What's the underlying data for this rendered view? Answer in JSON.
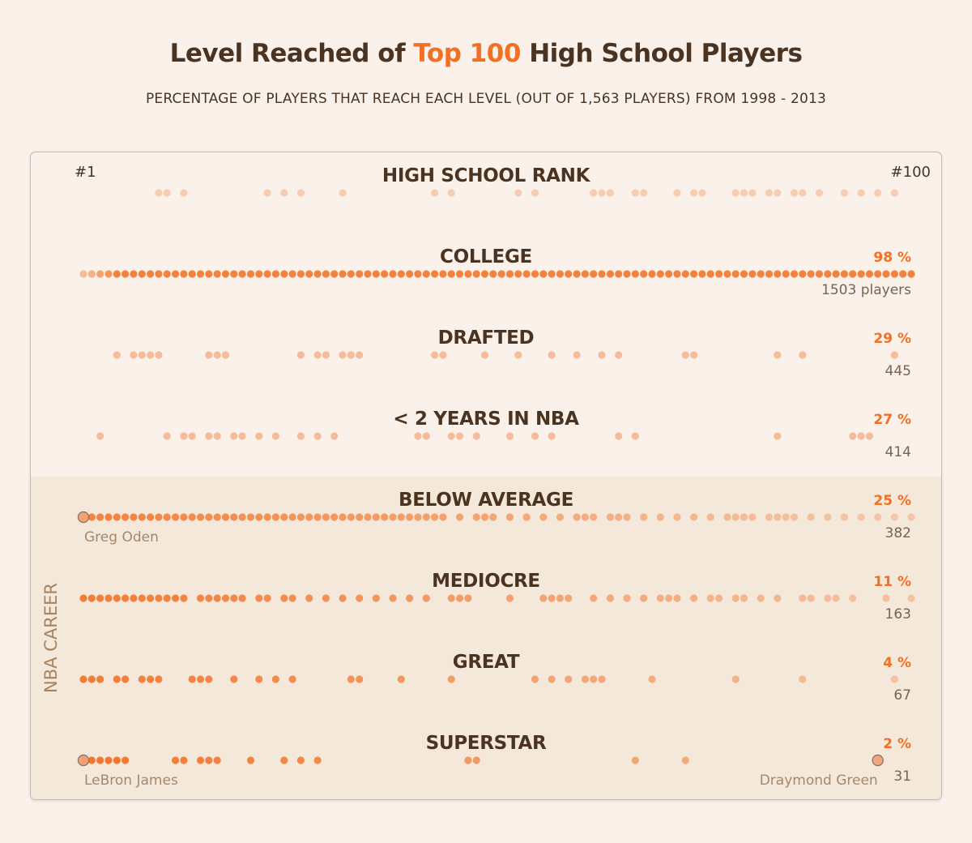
{
  "header": {
    "title_before": "Level Reached of ",
    "title_highlight": "Top 100",
    "title_after": " High School Players",
    "subtitle": "PERCENTAGE OF PLAYERS THAT REACH EACH LEVEL (OUT OF 1,563 PLAYERS) FROM 1998 - 2013"
  },
  "colors": {
    "accent": "#f36f21",
    "text": "#4a3320",
    "band": "#f4e8db",
    "background": "#f9f1ea"
  },
  "chart_data": {
    "type": "scatter",
    "x_axis": {
      "min_label": "#1",
      "max_label": "#100",
      "range": [
        1,
        100
      ]
    },
    "section_label": "NBA CAREER",
    "levels": [
      {
        "name": "HIGH SCHOOL RANK",
        "percent_label": "",
        "count_label": "",
        "base_opacity": 0.28,
        "ranks": [
          10,
          11,
          13,
          23,
          25,
          27,
          32,
          43,
          45,
          53,
          55,
          62,
          63,
          64,
          67,
          68,
          72,
          74,
          75,
          79,
          80,
          81,
          83,
          84,
          86,
          87,
          89,
          92,
          94,
          96,
          98
        ]
      },
      {
        "name": "COLLEGE",
        "percent_label": "98 %",
        "count_label": "1503 players",
        "base_opacity": 0.8,
        "ranks": []
      },
      {
        "name": "DRAFTED",
        "percent_label": "29 %",
        "count_label": "445",
        "base_opacity": 0.4,
        "ranks": [
          5,
          7,
          8,
          9,
          10,
          16,
          17,
          18,
          27,
          29,
          30,
          32,
          33,
          34,
          43,
          44,
          49,
          53,
          57,
          60,
          63,
          65,
          73,
          74,
          84,
          87,
          98
        ]
      },
      {
        "name": "< 2 YEARS IN NBA",
        "percent_label": "27 %",
        "count_label": "414",
        "base_opacity": 0.4,
        "ranks": [
          3,
          11,
          13,
          14,
          16,
          17,
          19,
          20,
          22,
          24,
          27,
          29,
          31,
          41,
          42,
          45,
          46,
          48,
          52,
          55,
          57,
          65,
          67,
          84,
          93,
          94,
          95
        ]
      },
      {
        "name": "BELOW AVERAGE",
        "percent_label": "25 %",
        "count_label": "382",
        "base_opacity": 0.5,
        "ranks": [
          1,
          2,
          3,
          4,
          5,
          6,
          7,
          8,
          9,
          10,
          11,
          12,
          13,
          14,
          15,
          16,
          17,
          18,
          19,
          20,
          21,
          22,
          23,
          24,
          25,
          26,
          27,
          28,
          29,
          30,
          31,
          32,
          33,
          34,
          35,
          36,
          37,
          38,
          39,
          40,
          41,
          42,
          43,
          44,
          46,
          48,
          49,
          50,
          52,
          54,
          56,
          58,
          60,
          61,
          62,
          64,
          65,
          66,
          68,
          70,
          72,
          74,
          76,
          78,
          79,
          80,
          81,
          83,
          84,
          85,
          86,
          88,
          90,
          92,
          94,
          96,
          98,
          100
        ]
      },
      {
        "name": "MEDIOCRE",
        "percent_label": "11 %",
        "count_label": "163",
        "base_opacity": 0.55,
        "ranks": [
          1,
          2,
          3,
          4,
          5,
          6,
          7,
          8,
          9,
          10,
          11,
          12,
          13,
          15,
          16,
          17,
          18,
          19,
          20,
          22,
          23,
          25,
          26,
          28,
          30,
          32,
          34,
          36,
          38,
          40,
          42,
          45,
          46,
          47,
          52,
          56,
          57,
          58,
          59,
          62,
          64,
          66,
          68,
          70,
          71,
          72,
          74,
          76,
          77,
          79,
          80,
          82,
          84,
          87,
          88,
          90,
          91,
          93,
          97,
          100
        ]
      },
      {
        "name": "GREAT",
        "percent_label": "4 %",
        "count_label": "67",
        "base_opacity": 0.55,
        "ranks": [
          1,
          2,
          3,
          5,
          6,
          8,
          9,
          10,
          14,
          15,
          16,
          19,
          22,
          24,
          26,
          33,
          34,
          39,
          45,
          55,
          57,
          59,
          61,
          62,
          63,
          69,
          79,
          87,
          98
        ]
      },
      {
        "name": "SUPERSTAR",
        "percent_label": "2 %",
        "count_label": "31",
        "base_opacity": 0.6,
        "ranks": [
          1,
          2,
          3,
          4,
          5,
          6,
          12,
          13,
          15,
          16,
          17,
          21,
          25,
          27,
          29,
          47,
          48,
          67,
          73,
          96
        ]
      }
    ],
    "callouts": [
      {
        "level": 4,
        "rank": 1,
        "name": "Greg Oden"
      },
      {
        "level": 7,
        "rank": 1,
        "name": "LeBron James"
      },
      {
        "level": 7,
        "rank": 96,
        "name": "Draymond Green"
      }
    ]
  }
}
